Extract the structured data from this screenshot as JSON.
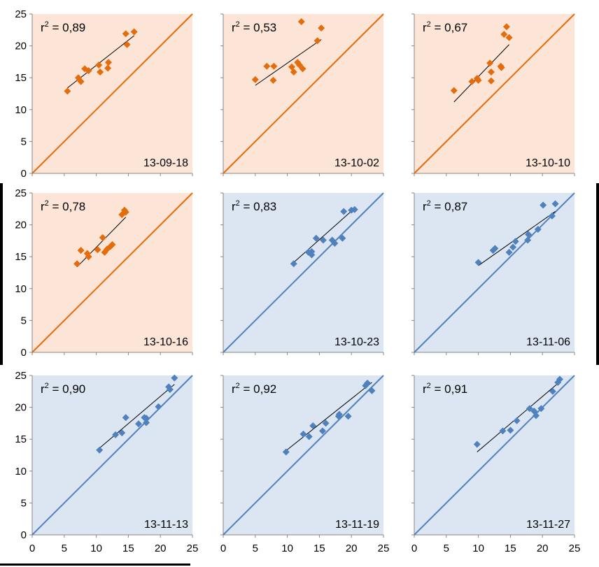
{
  "colors": {
    "orange_bg": "#fce4d6",
    "blue_bg": "#dce6f2",
    "orange_marker": "#e46c0a",
    "blue_marker": "#4f81bd",
    "orange_line": "#e46c0a",
    "blue_line": "#4f81bd",
    "trend_line": "#000000"
  },
  "chart_data": [
    {
      "type": "scatter",
      "theme": "orange",
      "r2_label": "r",
      "r2_value": " = 0,89",
      "date": "13-09-18",
      "xlim": [
        0,
        25
      ],
      "ylim": [
        0,
        25
      ],
      "ticks": [
        0,
        5,
        10,
        15,
        20,
        25
      ],
      "reference_line": "y=x",
      "points": [
        [
          5.5,
          12.9
        ],
        [
          7.2,
          15.0
        ],
        [
          7.6,
          14.4
        ],
        [
          8.2,
          16.4
        ],
        [
          8.8,
          16.1
        ],
        [
          10.4,
          17.0
        ],
        [
          10.6,
          15.9
        ],
        [
          11.8,
          16.5
        ],
        [
          11.9,
          17.4
        ],
        [
          14.6,
          21.9
        ],
        [
          14.8,
          20.2
        ],
        [
          15.9,
          22.2
        ]
      ],
      "trend": [
        [
          5.5,
          13.4
        ],
        [
          15.9,
          21.6
        ]
      ]
    },
    {
      "type": "scatter",
      "theme": "orange",
      "r2_label": "r",
      "r2_value": " = 0,53",
      "date": "13-10-02",
      "xlim": [
        0,
        25
      ],
      "ylim": [
        0,
        25
      ],
      "ticks": [
        0,
        5,
        10,
        15,
        20,
        25
      ],
      "reference_line": "y=x",
      "points": [
        [
          5.0,
          14.7
        ],
        [
          6.8,
          16.8
        ],
        [
          7.8,
          14.6
        ],
        [
          7.9,
          16.8
        ],
        [
          10.7,
          16.7
        ],
        [
          11.0,
          15.9
        ],
        [
          11.6,
          17.4
        ],
        [
          11.9,
          17.0
        ],
        [
          12.2,
          23.8
        ],
        [
          12.4,
          16.4
        ],
        [
          14.7,
          20.8
        ],
        [
          15.3,
          22.8
        ]
      ],
      "trend": [
        [
          5.0,
          13.8
        ],
        [
          15.3,
          21.0
        ]
      ]
    },
    {
      "type": "scatter",
      "theme": "orange",
      "r2_label": "r",
      "r2_value": " = 0,67",
      "date": "13-10-10",
      "xlim": [
        0,
        25
      ],
      "ylim": [
        0,
        25
      ],
      "ticks": [
        0,
        5,
        10,
        15,
        20,
        25
      ],
      "reference_line": "y=x",
      "points": [
        [
          6.2,
          13.0
        ],
        [
          9.0,
          14.4
        ],
        [
          9.8,
          14.9
        ],
        [
          10.0,
          14.6
        ],
        [
          11.8,
          17.3
        ],
        [
          12.0,
          15.9
        ],
        [
          12.0,
          14.5
        ],
        [
          13.5,
          16.8
        ],
        [
          13.6,
          16.6
        ],
        [
          14.0,
          21.8
        ],
        [
          14.4,
          23.0
        ],
        [
          14.8,
          21.3
        ]
      ],
      "trend": [
        [
          6.2,
          11.2
        ],
        [
          14.8,
          20.2
        ]
      ]
    },
    {
      "type": "scatter",
      "theme": "orange",
      "r2_label": "r",
      "r2_value": " = 0,78",
      "date": "13-10-16",
      "xlim": [
        0,
        25
      ],
      "ylim": [
        0,
        25
      ],
      "ticks": [
        0,
        5,
        10,
        15,
        20,
        25
      ],
      "reference_line": "y=x",
      "points": [
        [
          7.0,
          13.9
        ],
        [
          7.6,
          16.0
        ],
        [
          8.6,
          15.5
        ],
        [
          8.8,
          15.0
        ],
        [
          10.2,
          16.1
        ],
        [
          11.0,
          18.0
        ],
        [
          11.3,
          15.7
        ],
        [
          11.7,
          16.2
        ],
        [
          12.2,
          16.6
        ],
        [
          12.5,
          16.9
        ],
        [
          14.0,
          21.6
        ],
        [
          14.4,
          22.3
        ],
        [
          14.6,
          22.0
        ]
      ],
      "trend": [
        [
          7.0,
          13.4
        ],
        [
          14.6,
          21.2
        ]
      ]
    },
    {
      "type": "scatter",
      "theme": "blue",
      "r2_label": "r",
      "r2_value": " = 0,83",
      "date": "13-10-23",
      "xlim": [
        0,
        25
      ],
      "ylim": [
        0,
        25
      ],
      "ticks": [
        0,
        5,
        10,
        15,
        20,
        25
      ],
      "reference_line": "y=x",
      "points": [
        [
          11.0,
          13.9
        ],
        [
          13.3,
          15.7
        ],
        [
          13.8,
          15.3
        ],
        [
          13.8,
          15.8
        ],
        [
          14.5,
          17.9
        ],
        [
          15.6,
          17.6
        ],
        [
          17.0,
          17.6
        ],
        [
          17.4,
          17.1
        ],
        [
          18.6,
          17.9
        ],
        [
          18.8,
          22.1
        ],
        [
          20.0,
          22.3
        ],
        [
          20.5,
          22.4
        ]
      ],
      "trend": [
        [
          11.0,
          14.1
        ],
        [
          20.5,
          22.6
        ]
      ]
    },
    {
      "type": "scatter",
      "theme": "blue",
      "r2_label": "r",
      "r2_value": " = 0,87",
      "date": "13-11-06",
      "xlim": [
        0,
        25
      ],
      "ylim": [
        0,
        25
      ],
      "ticks": [
        0,
        5,
        10,
        15,
        20,
        25
      ],
      "reference_line": "y=x",
      "points": [
        [
          10.0,
          14.1
        ],
        [
          12.3,
          16.0
        ],
        [
          12.6,
          16.3
        ],
        [
          14.8,
          15.7
        ],
        [
          15.4,
          16.5
        ],
        [
          15.8,
          17.4
        ],
        [
          17.7,
          17.6
        ],
        [
          17.8,
          18.5
        ],
        [
          19.3,
          19.3
        ],
        [
          20.1,
          23.1
        ],
        [
          21.5,
          21.4
        ],
        [
          22.0,
          23.3
        ]
      ],
      "trend": [
        [
          10.0,
          13.6
        ],
        [
          22.0,
          22.1
        ]
      ]
    },
    {
      "type": "scatter",
      "theme": "blue",
      "r2_label": "r",
      "r2_value": " = 0,90",
      "date": "13-11-13",
      "xlim": [
        0,
        25
      ],
      "ylim": [
        0,
        25
      ],
      "ticks": [
        0,
        5,
        10,
        15,
        20,
        25
      ],
      "reference_line": "y=x",
      "points": [
        [
          10.5,
          13.3
        ],
        [
          13.0,
          15.7
        ],
        [
          14.0,
          16.0
        ],
        [
          14.6,
          18.4
        ],
        [
          16.6,
          17.4
        ],
        [
          17.5,
          18.4
        ],
        [
          17.8,
          17.6
        ],
        [
          17.8,
          18.3
        ],
        [
          19.7,
          20.1
        ],
        [
          21.3,
          23.2
        ],
        [
          21.5,
          22.8
        ],
        [
          22.2,
          24.6
        ]
      ],
      "trend": [
        [
          10.5,
          13.6
        ],
        [
          22.2,
          23.6
        ]
      ]
    },
    {
      "type": "scatter",
      "theme": "blue",
      "r2_label": "r",
      "r2_value": " = 0,92",
      "date": "13-11-19",
      "xlim": [
        0,
        25
      ],
      "ylim": [
        0,
        25
      ],
      "ticks": [
        0,
        5,
        10,
        15,
        20,
        25
      ],
      "reference_line": "y=x",
      "points": [
        [
          9.8,
          13.0
        ],
        [
          12.5,
          15.8
        ],
        [
          13.4,
          15.4
        ],
        [
          14.0,
          17.1
        ],
        [
          15.5,
          16.3
        ],
        [
          16.0,
          17.5
        ],
        [
          18.0,
          18.6
        ],
        [
          18.1,
          18.9
        ],
        [
          19.5,
          18.6
        ],
        [
          22.2,
          23.4
        ],
        [
          22.5,
          23.8
        ],
        [
          23.2,
          22.6
        ]
      ],
      "trend": [
        [
          9.8,
          13.2
        ],
        [
          23.2,
          23.9
        ]
      ]
    },
    {
      "type": "scatter",
      "theme": "blue",
      "r2_label": "r",
      "r2_value": " = 0,91",
      "date": "13-11-27",
      "xlim": [
        0,
        25
      ],
      "ylim": [
        0,
        25
      ],
      "ticks": [
        0,
        5,
        10,
        15,
        20,
        25
      ],
      "reference_line": "y=x",
      "points": [
        [
          9.8,
          14.2
        ],
        [
          13.8,
          16.3
        ],
        [
          15.0,
          16.4
        ],
        [
          16.0,
          17.9
        ],
        [
          18.0,
          19.8
        ],
        [
          18.7,
          19.4
        ],
        [
          19.0,
          18.7
        ],
        [
          19.8,
          19.8
        ],
        [
          21.6,
          22.5
        ],
        [
          22.4,
          23.9
        ],
        [
          22.7,
          24.4
        ]
      ],
      "trend": [
        [
          9.8,
          13.0
        ],
        [
          22.7,
          24.0
        ]
      ]
    }
  ]
}
